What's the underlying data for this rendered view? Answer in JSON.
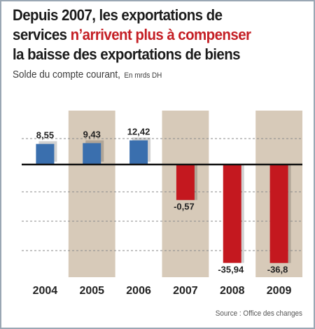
{
  "title": {
    "line1": "Depuis 2007, les exportations de",
    "line2_prefix": "services ",
    "line2_highlight": "n’arrivent plus à compenser",
    "line3": "la baisse des exportations de biens"
  },
  "subtitle": "Solde du compte courant,",
  "unit": "En mrds DH",
  "source": "Source : Office des changes",
  "colors": {
    "positive": "#3a6fae",
    "negative": "#c4181f",
    "band": "#c9b8a2",
    "title_highlight": "#c41f25"
  },
  "chart_data": {
    "type": "bar",
    "categories": [
      "2004",
      "2005",
      "2006",
      "2007",
      "2008",
      "2009"
    ],
    "values": [
      8.55,
      9.43,
      12.42,
      -0.57,
      -35.94,
      -36.8
    ],
    "value_labels": [
      "8,55",
      "9,43",
      "12,42",
      "-0,57",
      "-35,94",
      "-36,8"
    ],
    "title": "Solde du compte courant",
    "ylabel": "En mrds DH",
    "grid": true,
    "note": "axis scale is compressed (bar lengths not proportional)"
  }
}
